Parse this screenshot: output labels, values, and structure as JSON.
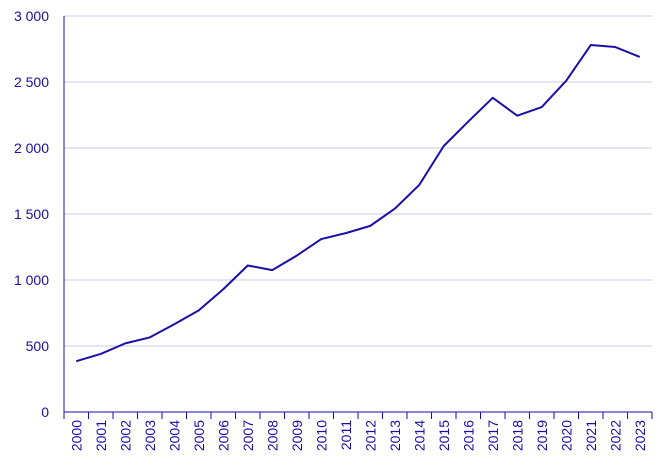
{
  "chart_data": {
    "type": "line",
    "title": "",
    "xlabel": "",
    "ylabel": "",
    "ylim": [
      0,
      3000
    ],
    "yticks": [
      0,
      500,
      1000,
      1500,
      2000,
      2500,
      3000
    ],
    "ytick_labels": [
      "0",
      "500",
      "1 000",
      "1 500",
      "2 000",
      "2 500",
      "3 000"
    ],
    "grid": true,
    "legend": "none",
    "categories": [
      "2000",
      "2001",
      "2002",
      "2003",
      "2004",
      "2005",
      "2006",
      "2007",
      "2008",
      "2009",
      "2010",
      "2011",
      "2012",
      "2013",
      "2014",
      "2015",
      "2016",
      "2017",
      "2018",
      "2019",
      "2020",
      "2021",
      "2022",
      "2023"
    ],
    "series": [
      {
        "color": "#1a0fa8",
        "values": [
          385,
          440,
          520,
          565,
          665,
          770,
          930,
          1110,
          1075,
          1185,
          1310,
          1355,
          1410,
          1540,
          1720,
          2015,
          2200,
          2380,
          2245,
          2310,
          2510,
          2780,
          2765,
          2690
        ]
      }
    ],
    "colors": {
      "axis": "#1a0fa8",
      "grid": "#c9c9e6",
      "text": "#1a0fa8"
    }
  }
}
